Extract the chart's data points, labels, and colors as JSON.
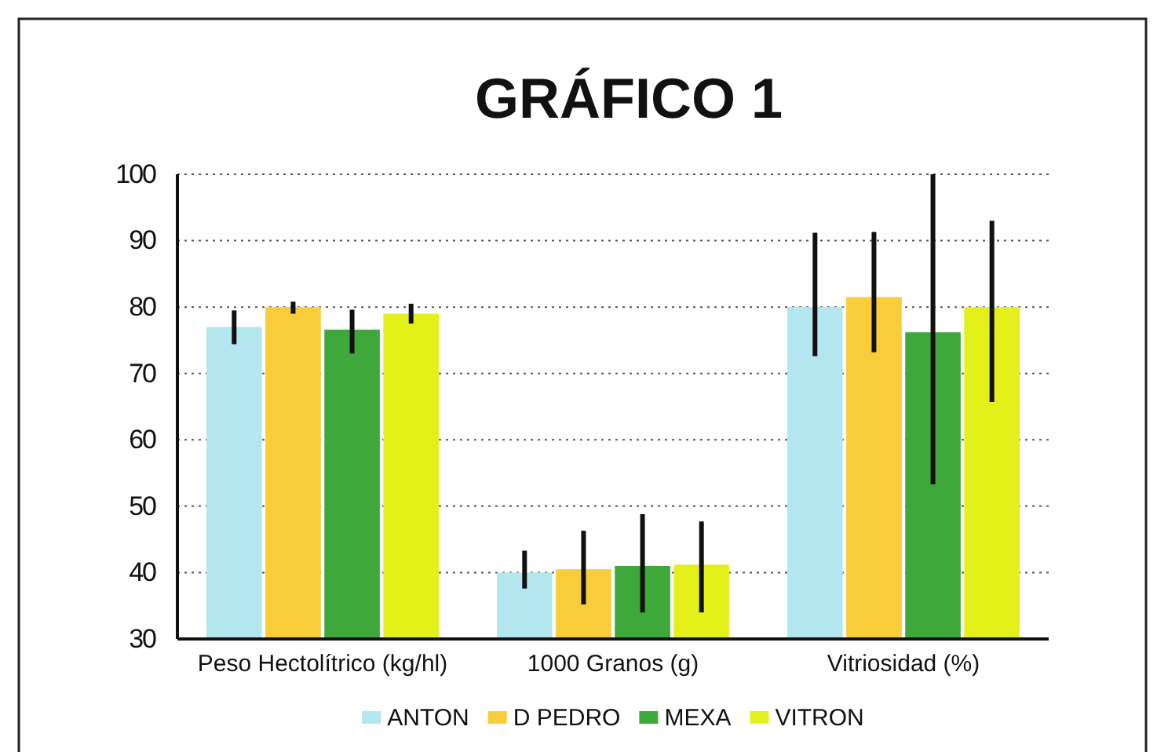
{
  "chart_data": {
    "type": "bar",
    "title": "GRÁFICO 1",
    "categories": [
      "Peso Hectolítrico (kg/hl)",
      "1000 Granos (g)",
      "Vitriosidad (%)"
    ],
    "series": [
      {
        "name": "ANTON",
        "color": "#b3e6ee",
        "values": [
          77,
          40,
          80
        ],
        "errors": [
          [
            74.4,
            79.5
          ],
          [
            37.6,
            43.3
          ],
          [
            72.6,
            91.2
          ]
        ]
      },
      {
        "name": "D PEDRO",
        "color": "#f9cd3a",
        "values": [
          80,
          40.5,
          81.5
        ],
        "errors": [
          [
            79,
            80.8
          ],
          [
            35.2,
            46.3
          ],
          [
            73.2,
            91.3
          ]
        ]
      },
      {
        "name": "MEXA",
        "color": "#3fa83a",
        "values": [
          76.6,
          41,
          76.2
        ],
        "errors": [
          [
            73,
            79.6
          ],
          [
            34,
            48.8
          ],
          [
            53.3,
            100
          ]
        ]
      },
      {
        "name": "VITRON",
        "color": "#e4f01a",
        "values": [
          79,
          41.2,
          80
        ],
        "errors": [
          [
            77.5,
            80.5
          ],
          [
            34,
            47.7
          ],
          [
            65.7,
            93
          ]
        ]
      }
    ],
    "ylim": [
      30,
      100
    ],
    "yticks": [
      30,
      40,
      50,
      60,
      70,
      80,
      90,
      100
    ],
    "grid": "y",
    "legend": "bottom"
  }
}
